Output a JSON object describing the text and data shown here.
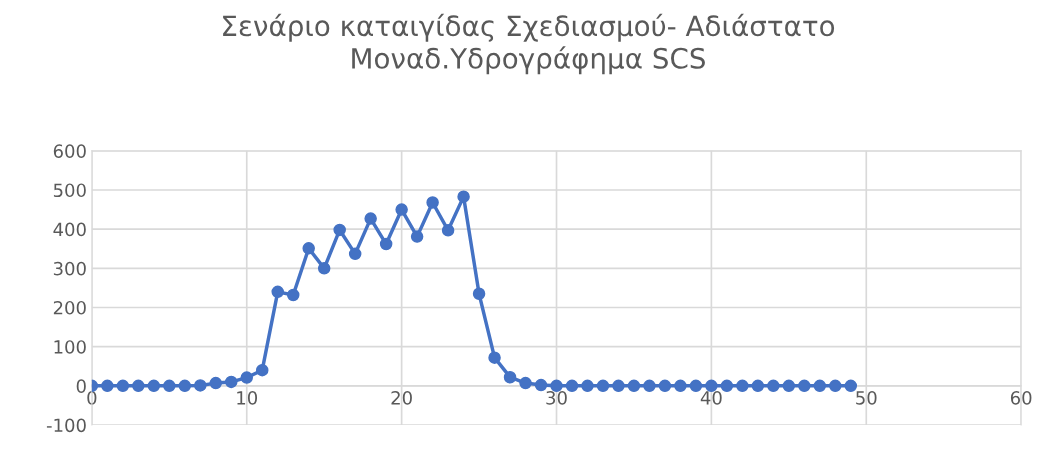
{
  "chart_data": {
    "type": "line",
    "title": "Σενάριο καταιγίδας Σχεδιασμού- Αδιάστατο\nΜοναδ.Υδρογράφημα SCS",
    "x": [
      0,
      1,
      2,
      3,
      4,
      5,
      6,
      7,
      8,
      9,
      10,
      11,
      12,
      13,
      14,
      15,
      16,
      17,
      18,
      19,
      20,
      21,
      22,
      23,
      24,
      25,
      26,
      27,
      28,
      29,
      30,
      31,
      32,
      33,
      34,
      35,
      36,
      37,
      38,
      39,
      40,
      41,
      42,
      43,
      44,
      45,
      46,
      47,
      48,
      49
    ],
    "series": [
      {
        "color": "#4472c4",
        "values": [
          0,
          0,
          0,
          0,
          0,
          0,
          0,
          1,
          7,
          10,
          21,
          40,
          240,
          232,
          351,
          300,
          398,
          337,
          427,
          362,
          450,
          381,
          468,
          397,
          483,
          235,
          72,
          22,
          7,
          2,
          0,
          0,
          0,
          0,
          0,
          0,
          0,
          0,
          0,
          0,
          0,
          0,
          0,
          0,
          0,
          0,
          0,
          0,
          0,
          0
        ]
      }
    ],
    "xlim": [
      0,
      60
    ],
    "xticks": [
      0,
      10,
      20,
      30,
      40,
      50,
      60
    ],
    "ylim": [
      -100,
      600
    ],
    "yticks": [
      -100,
      0,
      100,
      200,
      300,
      400,
      500,
      600
    ],
    "grid": true,
    "marker": "circle",
    "line_style": "solid",
    "legend": false
  }
}
